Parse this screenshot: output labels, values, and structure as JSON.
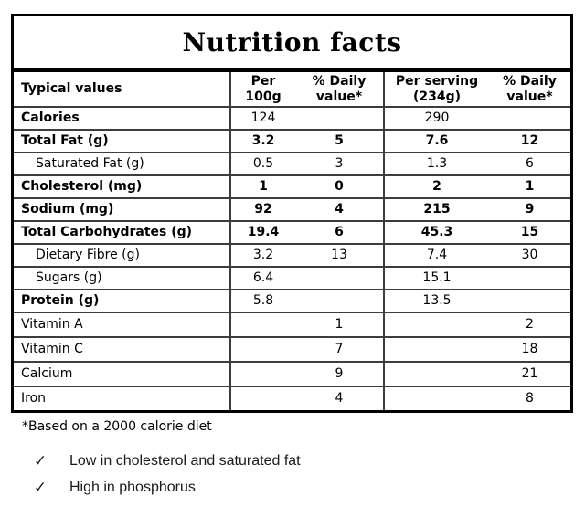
{
  "title": "Nutrition facts",
  "table": {
    "columns": {
      "label": "Typical values",
      "per_100g": "Per\n100g",
      "pct_daily_100g": "% Daily\nvalue*",
      "per_serving": "Per serving\n(234g)",
      "pct_daily_serving": "% Daily\nvalue*"
    },
    "rows": [
      {
        "label": "Calories",
        "label_bold": true,
        "values_bold": false,
        "indent": false,
        "per_100g": "124",
        "pct_daily_100g": "",
        "per_serving": "290",
        "pct_daily_serving": ""
      },
      {
        "label": "Total Fat (g)",
        "label_bold": true,
        "values_bold": true,
        "indent": false,
        "per_100g": "3.2",
        "pct_daily_100g": "5",
        "per_serving": "7.6",
        "pct_daily_serving": "12"
      },
      {
        "label": "Saturated Fat (g)",
        "label_bold": false,
        "values_bold": false,
        "indent": true,
        "per_100g": "0.5",
        "pct_daily_100g": "3",
        "per_serving": "1.3",
        "pct_daily_serving": "6"
      },
      {
        "label": "Cholesterol (mg)",
        "label_bold": true,
        "values_bold": true,
        "indent": false,
        "per_100g": "1",
        "pct_daily_100g": "0",
        "per_serving": "2",
        "pct_daily_serving": "1"
      },
      {
        "label": "Sodium (mg)",
        "label_bold": true,
        "values_bold": true,
        "indent": false,
        "per_100g": "92",
        "pct_daily_100g": "4",
        "per_serving": "215",
        "pct_daily_serving": "9"
      },
      {
        "label": "Total Carbohydrates (g)",
        "label_bold": true,
        "values_bold": true,
        "indent": false,
        "per_100g": "19.4",
        "pct_daily_100g": "6",
        "per_serving": "45.3",
        "pct_daily_serving": "15"
      },
      {
        "label": "Dietary Fibre (g)",
        "label_bold": false,
        "values_bold": false,
        "indent": true,
        "per_100g": "3.2",
        "pct_daily_100g": "13",
        "per_serving": "7.4",
        "pct_daily_serving": "30"
      },
      {
        "label": "Sugars (g)",
        "label_bold": false,
        "values_bold": false,
        "indent": true,
        "per_100g": "6.4",
        "pct_daily_100g": "",
        "per_serving": "15.1",
        "pct_daily_serving": ""
      },
      {
        "label": "Protein (g)",
        "label_bold": true,
        "values_bold": false,
        "indent": false,
        "per_100g": "5.8",
        "pct_daily_100g": "",
        "per_serving": "13.5",
        "pct_daily_serving": ""
      },
      {
        "label": "Vitamin A",
        "label_bold": false,
        "values_bold": false,
        "indent": false,
        "per_100g": "",
        "pct_daily_100g": "1",
        "per_serving": "",
        "pct_daily_serving": "2"
      },
      {
        "label": "Vitamin C",
        "label_bold": false,
        "values_bold": false,
        "indent": false,
        "per_100g": "",
        "pct_daily_100g": "7",
        "per_serving": "",
        "pct_daily_serving": "18"
      },
      {
        "label": "Calcium",
        "label_bold": false,
        "values_bold": false,
        "indent": false,
        "per_100g": "",
        "pct_daily_100g": "9",
        "per_serving": "",
        "pct_daily_serving": "21"
      },
      {
        "label": "Iron",
        "label_bold": false,
        "values_bold": false,
        "indent": false,
        "per_100g": "",
        "pct_daily_100g": "4",
        "per_serving": "",
        "pct_daily_serving": "8"
      }
    ]
  },
  "footnote": "*Based on a 2000 calorie diet",
  "checklist": {
    "check_icon": "✓",
    "items": [
      "Low in cholesterol and saturated fat",
      "High in phosphorus"
    ]
  },
  "colors": {
    "outer_border": "#000000",
    "grid_line": "#3d3d3d",
    "text": "#000000",
    "background": "#ffffff"
  }
}
